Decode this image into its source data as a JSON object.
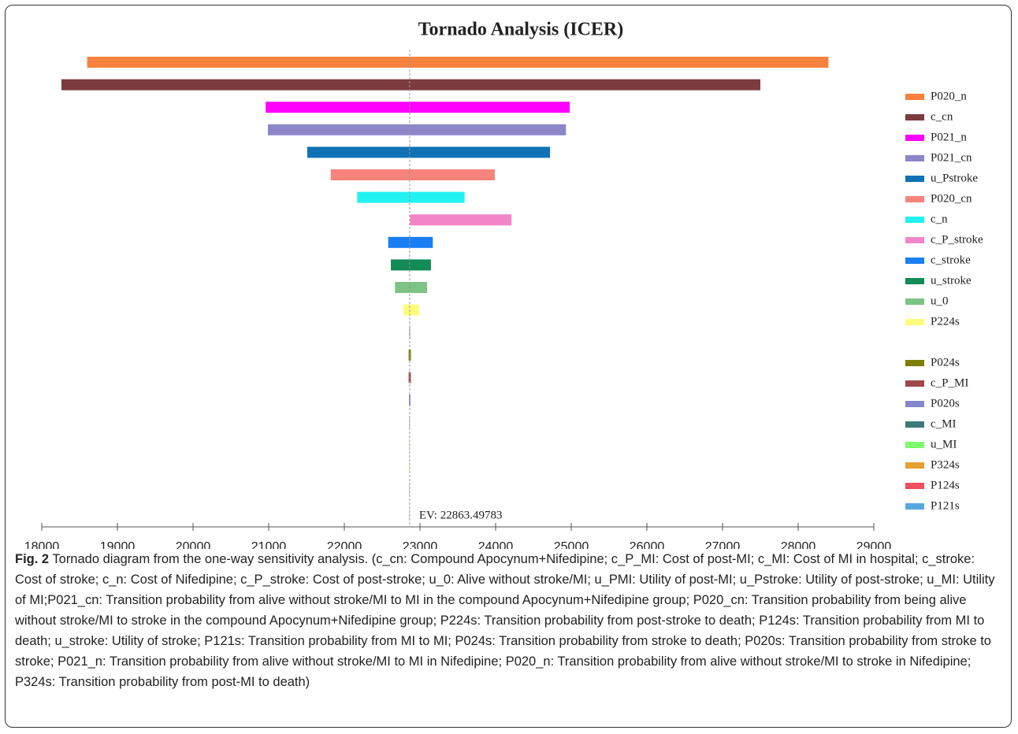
{
  "chart_data": {
    "type": "tornado",
    "title": "Tornado Analysis (ICER)",
    "ev": 22863.49783,
    "ev_label": "EV: 22863.49783",
    "xlim": [
      18000,
      29000
    ],
    "xticks": [
      18000,
      19000,
      20000,
      21000,
      22000,
      23000,
      24000,
      25000,
      26000,
      27000,
      28000,
      29000
    ],
    "series": [
      {
        "name": "P020_n",
        "color": "#f7813e",
        "values": [
          18600,
          28400
        ]
      },
      {
        "name": "c_cn",
        "color": "#7b3b3f",
        "values": [
          18260,
          27500
        ]
      },
      {
        "name": "P021_n",
        "color": "#ff00ff",
        "values": [
          20960,
          24980
        ]
      },
      {
        "name": "P021_cn",
        "color": "#8c86c8",
        "values": [
          20990,
          24930
        ]
      },
      {
        "name": "u_Pstroke",
        "color": "#0e72b5",
        "values": [
          21510,
          24720
        ]
      },
      {
        "name": "P020_cn",
        "color": "#f6847c",
        "values": [
          21820,
          23990
        ]
      },
      {
        "name": "c_n",
        "color": "#22f2f0",
        "values": [
          22170,
          23590
        ]
      },
      {
        "name": "c_P_stroke",
        "color": "#f286c8",
        "values": [
          22870,
          24210
        ]
      },
      {
        "name": "c_stroke",
        "color": "#1a7ef5",
        "values": [
          22580,
          23170
        ]
      },
      {
        "name": "u_stroke",
        "color": "#128b57",
        "values": [
          22615,
          23145
        ]
      },
      {
        "name": "u_0",
        "color": "#7dc383",
        "values": [
          22670,
          23095
        ]
      },
      {
        "name": "P224s",
        "color": "#fdfd7a",
        "values": [
          22780,
          22990
        ]
      },
      {
        "name": null,
        "color": "#cccccc",
        "values": [
          22855,
          22875
        ]
      },
      {
        "name": "P024s",
        "color": "#7e7e00",
        "values": [
          22850,
          22880
        ]
      },
      {
        "name": "c_P_MI",
        "color": "#a04848",
        "values": [
          22850,
          22880
        ]
      },
      {
        "name": "P020s",
        "color": "#8686cc",
        "values": [
          22855,
          22875
        ]
      },
      {
        "name": "c_MI",
        "color": "#3c7a7a",
        "values": [
          22860,
          22865
        ]
      },
      {
        "name": "u_MI",
        "color": "#7cfc6c",
        "values": [
          22860,
          22865
        ]
      },
      {
        "name": "P324s",
        "color": "#e8a030",
        "values": [
          22860,
          22865
        ]
      },
      {
        "name": "P124s",
        "color": "#f05060",
        "values": [
          22860,
          22865
        ]
      },
      {
        "name": "P121s",
        "color": "#58a8e0",
        "values": [
          22860,
          22865
        ]
      }
    ]
  },
  "caption": {
    "label": "Fig. 2",
    "text": "Tornado diagram from the one-way sensitivity analysis. (c_cn: Compound Apocynum+Nifedipine; c_P_MI: Cost of post-MI; c_MI: Cost of MI in hospital; c_stroke: Cost of stroke; c_n: Cost of Nifedipine; c_P_stroke: Cost of post-stroke; u_0: Alive without stroke/MI; u_PMI: Utility of post-MI; u_Pstroke: Utility of post-stroke; u_MI: Utility of MI;P021_cn: Transition probability from alive without stroke/MI to MI in the compound Apocynum+Nifedipine group; P020_cn: Transition probability from being alive without stroke/MI to stroke in the compound Apocynum+Nifedipine group; P224s: Transition probability from post-stroke to death; P124s: Transition probability from MI to death; u_stroke: Utility of stroke; P121s: Transition probability from MI to MI; P024s: Transition probability from stroke to death; P020s: Transition probability from stroke to stroke; P021_n: Transition probability from alive without stroke/MI to MI in Nifedipine; P020_n: Transition probability from alive without stroke/MI to stroke in Nifedipine; P324s: Transition probability from post-MI to death)"
  }
}
